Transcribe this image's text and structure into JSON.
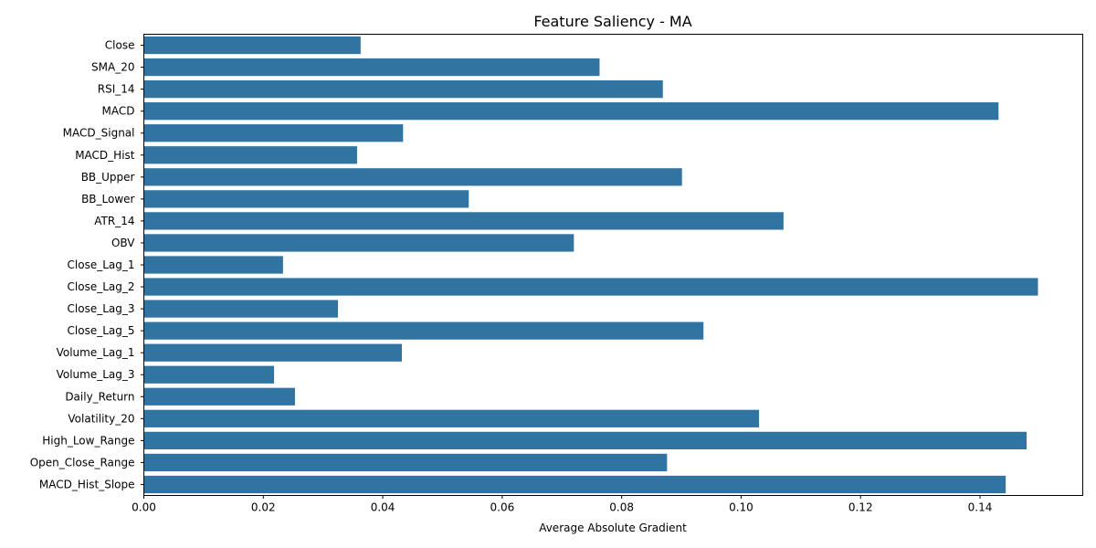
{
  "chart_data": {
    "type": "bar",
    "orientation": "horizontal",
    "title": "Feature Saliency - MA",
    "xlabel": "Average Absolute Gradient",
    "ylabel": "",
    "xlim": [
      0,
      0.1572
    ],
    "xticks": [
      0.0,
      0.02,
      0.04,
      0.06,
      0.08,
      0.1,
      0.12,
      0.14
    ],
    "xtick_labels": [
      "0.00",
      "0.02",
      "0.04",
      "0.06",
      "0.08",
      "0.10",
      "0.12",
      "0.14"
    ],
    "grid": false,
    "bar_color": "#3274a1",
    "categories": [
      "Close",
      "SMA_20",
      "RSI_14",
      "MACD",
      "MACD_Signal",
      "MACD_Hist",
      "BB_Upper",
      "BB_Lower",
      "ATR_14",
      "OBV",
      "Close_Lag_1",
      "Close_Lag_2",
      "Close_Lag_3",
      "Close_Lag_5",
      "Volume_Lag_1",
      "Volume_Lag_3",
      "Daily_Return",
      "Volatility_20",
      "High_Low_Range",
      "Open_Close_Range",
      "MACD_Hist_Slope"
    ],
    "values": [
      0.0363,
      0.0763,
      0.0869,
      0.1431,
      0.0434,
      0.0357,
      0.0901,
      0.0544,
      0.1071,
      0.072,
      0.0233,
      0.1497,
      0.0325,
      0.0937,
      0.0432,
      0.0218,
      0.0253,
      0.103,
      0.1478,
      0.0876,
      0.1443
    ]
  }
}
